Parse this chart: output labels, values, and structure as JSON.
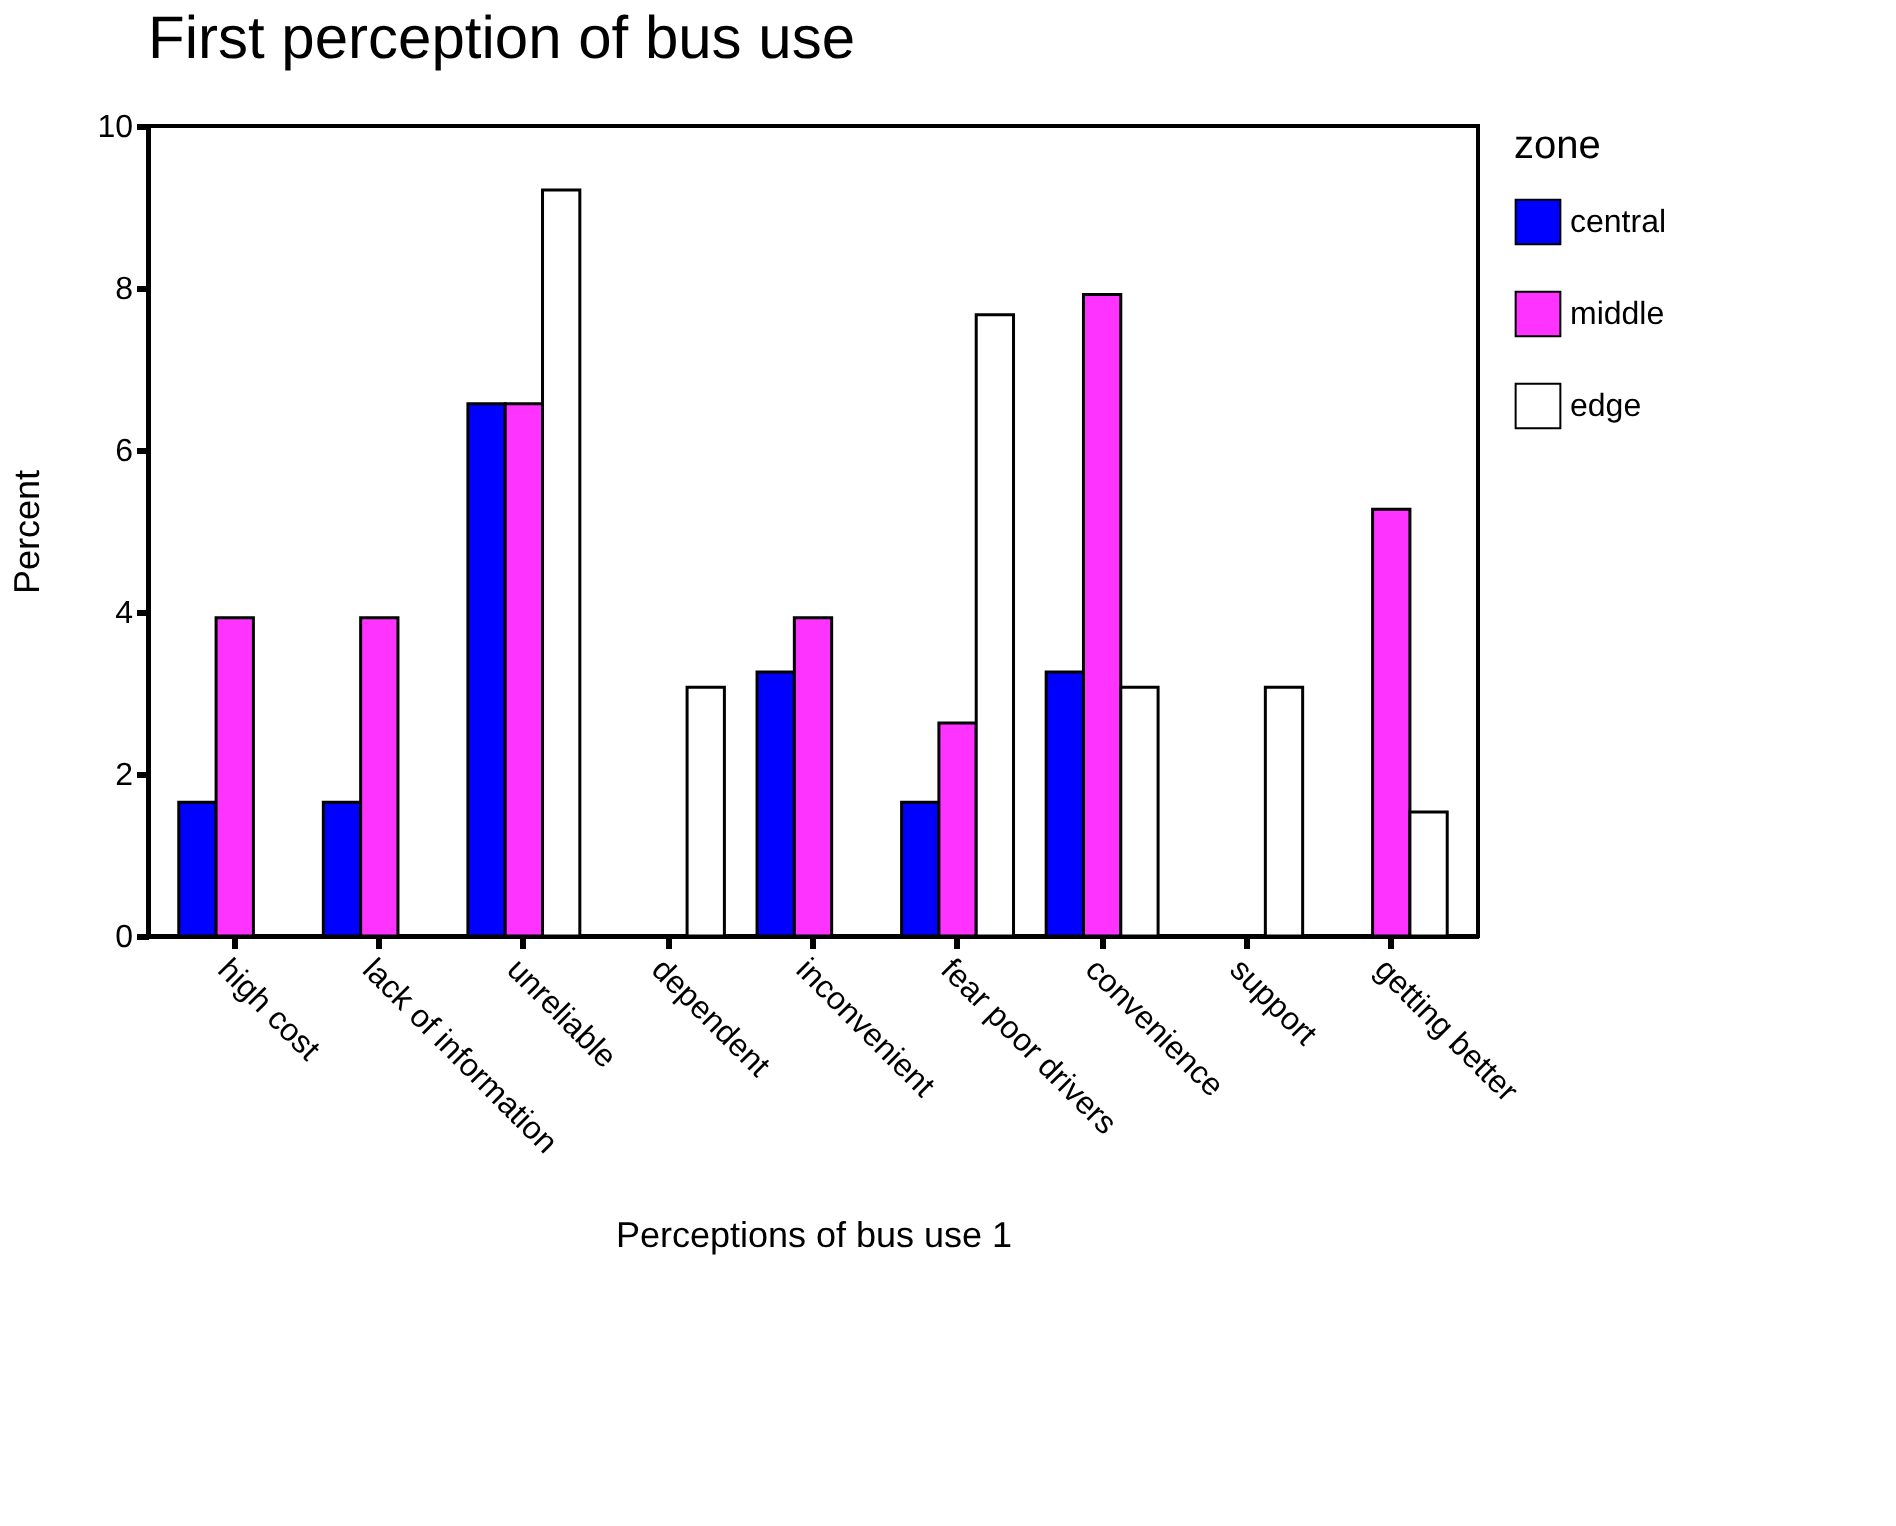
{
  "chart_data": {
    "type": "bar",
    "title": "First perception of bus use",
    "xlabel": "Perceptions of bus use 1",
    "ylabel": "Percent",
    "legend_title": "zone",
    "legend": "right",
    "categories": [
      "high cost",
      "lack of information",
      "unreliable",
      "dependent",
      "inconvenient",
      "fear poor drivers",
      "convenience",
      "support",
      "getting better"
    ],
    "series": [
      {
        "name": "central",
        "color": "#0000ff",
        "values": [
          1.65,
          1.65,
          6.57,
          0,
          3.26,
          1.65,
          3.26,
          0,
          0
        ]
      },
      {
        "name": "middle",
        "color": "#ff33ff",
        "values": [
          3.93,
          3.93,
          6.57,
          0,
          3.93,
          2.63,
          7.92,
          0,
          5.27
        ]
      },
      {
        "name": "edge",
        "color": "#ffffff",
        "values": [
          0,
          0,
          9.21,
          3.07,
          0,
          7.67,
          3.07,
          3.07,
          1.53
        ]
      }
    ],
    "ylim": [
      0,
      10
    ],
    "yticks": [
      0,
      2,
      4,
      6,
      8,
      10
    ],
    "grid": false
  }
}
